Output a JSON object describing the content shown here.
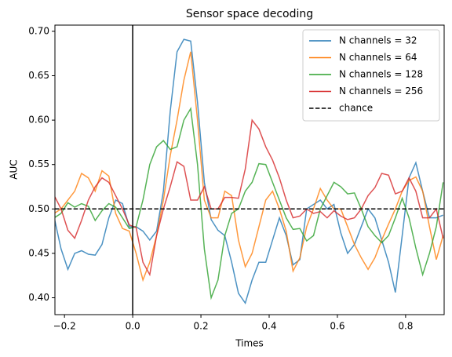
{
  "chart_data": {
    "type": "line",
    "title": "Sensor space decoding",
    "xlabel": "Times",
    "ylabel": "AUC",
    "x": [
      -0.23,
      -0.21,
      -0.19,
      -0.17,
      -0.15,
      -0.13,
      -0.11,
      -0.09,
      -0.07,
      -0.05,
      -0.03,
      -0.01,
      0.01,
      0.03,
      0.05,
      0.07,
      0.09,
      0.11,
      0.13,
      0.15,
      0.17,
      0.19,
      0.21,
      0.23,
      0.25,
      0.27,
      0.29,
      0.31,
      0.33,
      0.35,
      0.37,
      0.39,
      0.41,
      0.43,
      0.45,
      0.47,
      0.49,
      0.51,
      0.53,
      0.55,
      0.57,
      0.59,
      0.61,
      0.63,
      0.65,
      0.67,
      0.69,
      0.71,
      0.73,
      0.75,
      0.77,
      0.79,
      0.81,
      0.83,
      0.85,
      0.87,
      0.89,
      0.91
    ],
    "series": [
      {
        "name": "N channels = 32",
        "color": "#1f77b4",
        "values": [
          0.49,
          0.455,
          0.432,
          0.45,
          0.453,
          0.449,
          0.448,
          0.46,
          0.49,
          0.51,
          0.506,
          0.48,
          0.48,
          0.475,
          0.465,
          0.475,
          0.52,
          0.61,
          0.677,
          0.691,
          0.689,
          0.62,
          0.53,
          0.488,
          0.476,
          0.47,
          0.44,
          0.405,
          0.394,
          0.42,
          0.44,
          0.44,
          0.465,
          0.49,
          0.47,
          0.437,
          0.443,
          0.5,
          0.505,
          0.51,
          0.5,
          0.505,
          0.473,
          0.45,
          0.46,
          0.48,
          0.5,
          0.49,
          0.465,
          0.44,
          0.406,
          0.47,
          0.535,
          0.552,
          0.52,
          0.49,
          0.49,
          0.493
        ]
      },
      {
        "name": "N channels = 64",
        "color": "#ff7f0e",
        "values": [
          0.495,
          0.5,
          0.51,
          0.52,
          0.54,
          0.535,
          0.52,
          0.543,
          0.537,
          0.495,
          0.478,
          0.475,
          0.45,
          0.42,
          0.44,
          0.47,
          0.51,
          0.56,
          0.6,
          0.645,
          0.677,
          0.6,
          0.51,
          0.49,
          0.49,
          0.52,
          0.515,
          0.465,
          0.435,
          0.45,
          0.48,
          0.51,
          0.52,
          0.5,
          0.475,
          0.43,
          0.445,
          0.48,
          0.5,
          0.523,
          0.51,
          0.5,
          0.5,
          0.48,
          0.46,
          0.445,
          0.432,
          0.445,
          0.465,
          0.483,
          0.5,
          0.52,
          0.532,
          0.536,
          0.52,
          0.48,
          0.443,
          0.47
        ]
      },
      {
        "name": "N channels = 128",
        "color": "#2ca02c",
        "values": [
          0.49,
          0.495,
          0.507,
          0.502,
          0.506,
          0.503,
          0.487,
          0.498,
          0.506,
          0.502,
          0.49,
          0.478,
          0.48,
          0.51,
          0.55,
          0.57,
          0.577,
          0.567,
          0.57,
          0.6,
          0.613,
          0.55,
          0.455,
          0.4,
          0.42,
          0.47,
          0.495,
          0.5,
          0.52,
          0.53,
          0.551,
          0.55,
          0.53,
          0.51,
          0.49,
          0.477,
          0.478,
          0.464,
          0.47,
          0.5,
          0.515,
          0.53,
          0.525,
          0.517,
          0.518,
          0.5,
          0.48,
          0.47,
          0.462,
          0.47,
          0.49,
          0.512,
          0.49,
          0.456,
          0.426,
          0.45,
          0.48,
          0.53
        ]
      },
      {
        "name": "N channels = 256",
        "color": "#d62728",
        "values": [
          0.515,
          0.5,
          0.476,
          0.467,
          0.487,
          0.51,
          0.525,
          0.535,
          0.53,
          0.515,
          0.5,
          0.482,
          0.479,
          0.44,
          0.426,
          0.47,
          0.5,
          0.525,
          0.553,
          0.548,
          0.51,
          0.51,
          0.525,
          0.5,
          0.5,
          0.513,
          0.513,
          0.512,
          0.545,
          0.6,
          0.59,
          0.57,
          0.555,
          0.535,
          0.51,
          0.49,
          0.492,
          0.5,
          0.495,
          0.497,
          0.49,
          0.498,
          0.492,
          0.488,
          0.49,
          0.5,
          0.515,
          0.524,
          0.54,
          0.538,
          0.517,
          0.52,
          0.535,
          0.52,
          0.49,
          0.49,
          0.5,
          0.467
        ]
      }
    ],
    "hline": {
      "name": "chance",
      "value": 0.5,
      "color": "#000000",
      "style": "dashed"
    },
    "vline": {
      "value": 0,
      "color": "#000000"
    },
    "xlim": [
      -0.228,
      0.913
    ],
    "ylim": [
      0.381,
      0.707
    ],
    "xticks": [
      {
        "value": -0.2,
        "label": "−0.2"
      },
      {
        "value": 0,
        "label": "0.0"
      },
      {
        "value": 0.2,
        "label": "0.2"
      },
      {
        "value": 0.4,
        "label": "0.4"
      },
      {
        "value": 0.6,
        "label": "0.6"
      },
      {
        "value": 0.8,
        "label": "0.8"
      }
    ],
    "yticks": [
      {
        "value": 0.4,
        "label": "0.40"
      },
      {
        "value": 0.45,
        "label": "0.45"
      },
      {
        "value": 0.5,
        "label": "0.50"
      },
      {
        "value": 0.55,
        "label": "0.55"
      },
      {
        "value": 0.6,
        "label": "0.60"
      },
      {
        "value": 0.65,
        "label": "0.65"
      },
      {
        "value": 0.7,
        "label": "0.70"
      }
    ],
    "legend": "upper right"
  }
}
